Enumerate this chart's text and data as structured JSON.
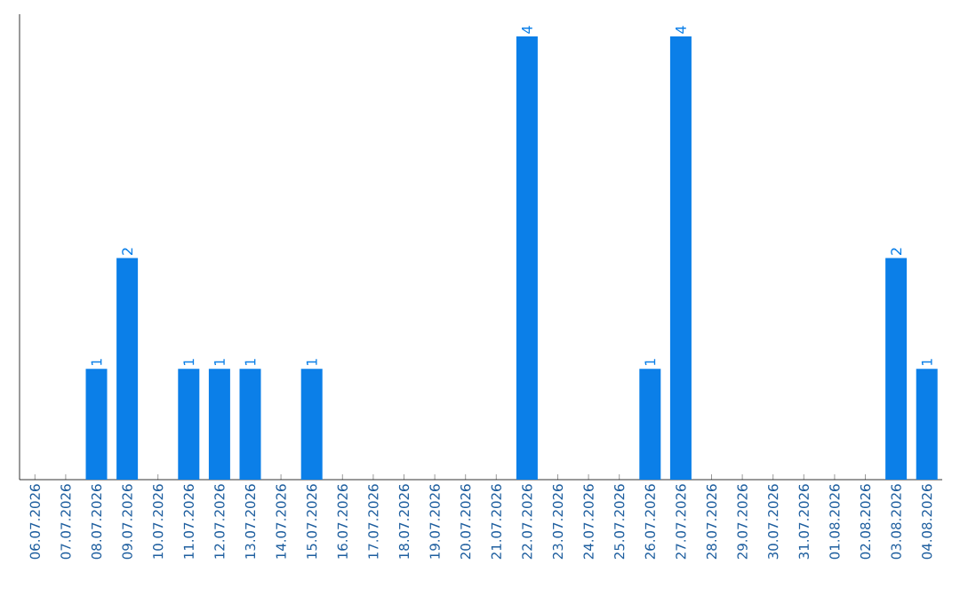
{
  "chart_data": {
    "type": "bar",
    "categories": [
      "06.07.2026",
      "07.07.2026",
      "08.07.2026",
      "09.07.2026",
      "10.07.2026",
      "11.07.2026",
      "12.07.2026",
      "13.07.2026",
      "14.07.2026",
      "15.07.2026",
      "16.07.2026",
      "17.07.2026",
      "18.07.2026",
      "19.07.2026",
      "20.07.2026",
      "21.07.2026",
      "22.07.2026",
      "23.07.2026",
      "24.07.2026",
      "25.07.2026",
      "26.07.2026",
      "27.07.2026",
      "28.07.2026",
      "29.07.2026",
      "30.07.2026",
      "31.07.2026",
      "01.08.2026",
      "02.08.2026",
      "03.08.2026",
      "04.08.2026"
    ],
    "values": [
      0,
      0,
      1,
      2,
      0,
      1,
      1,
      1,
      0,
      1,
      0,
      0,
      0,
      0,
      0,
      0,
      4,
      0,
      0,
      0,
      1,
      4,
      0,
      0,
      0,
      0,
      0,
      0,
      2,
      1
    ],
    "value_labels": [
      null,
      null,
      "1",
      "2",
      null,
      "1",
      "1",
      "1",
      null,
      "1",
      null,
      null,
      null,
      null,
      null,
      null,
      "4",
      null,
      null,
      null,
      "1",
      "4",
      null,
      null,
      null,
      null,
      null,
      null,
      "2",
      "1"
    ],
    "color": "#0b7fe8",
    "tick_labels": "x",
    "grid": false
  }
}
